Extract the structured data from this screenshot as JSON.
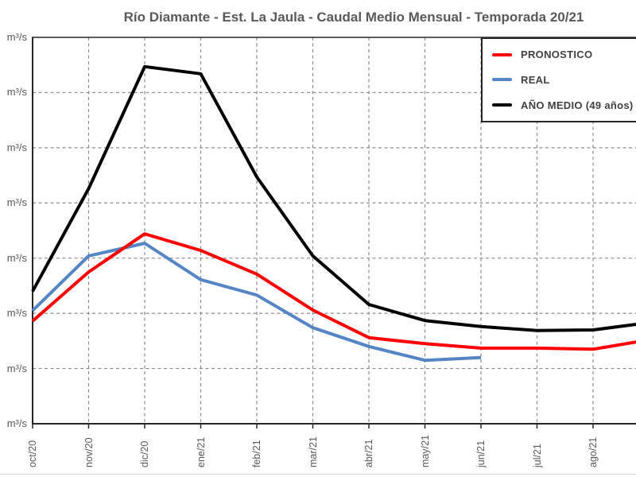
{
  "title": "Río Diamante - Est. La Jaula - Caudal Medio Mensual - Temporada 20/21",
  "colors": {
    "pronostico": "#ff0000",
    "real": "#5585c5",
    "ano_medio": "#000000",
    "axis": "#262626",
    "grid": "#8c8c8c",
    "text": "#595959",
    "legend_text": "#404040"
  },
  "y_axis": {
    "unit_label": "m³/s",
    "tick_count": 8
  },
  "chart_data": {
    "type": "line",
    "title": "Río Diamante - Est. La Jaula - Caudal Medio Mensual - Temporada 20/21",
    "categories": [
      "oct/20",
      "nov/20",
      "dic/20",
      "ene/21",
      "feb/21",
      "mar/21",
      "abr/21",
      "may/21",
      "jun/21",
      "jul/21",
      "ago/21"
    ],
    "y_axis_unit": "m³/s",
    "y_axis_note": "numeric tick values are cropped out of frame; series values are in gridline units (0 = bottom axis line, 7 = top border line)",
    "ylim": [
      0,
      7
    ],
    "grid": {
      "horizontal": "dashed",
      "vertical": "dashed"
    },
    "legend_position": "top-right",
    "series": [
      {
        "name": "PRONOSTICO",
        "color": "#ff0000",
        "values": [
          1.86,
          2.75,
          3.44,
          3.14,
          2.71,
          2.06,
          1.56,
          1.45,
          1.37,
          1.37,
          1.35
        ],
        "edge_value": 1.48
      },
      {
        "name": "REAL",
        "color": "#5585c5",
        "values": [
          2.05,
          3.04,
          3.27,
          2.61,
          2.33,
          1.74,
          1.4,
          1.15,
          1.2
        ],
        "edge_value": null
      },
      {
        "name": "AÑO MEDIO (49 años)",
        "color": "#000000",
        "values": [
          2.4,
          4.26,
          6.47,
          6.34,
          4.47,
          3.04,
          2.16,
          1.87,
          1.76,
          1.69,
          1.7
        ],
        "edge_value": 1.8
      }
    ]
  }
}
